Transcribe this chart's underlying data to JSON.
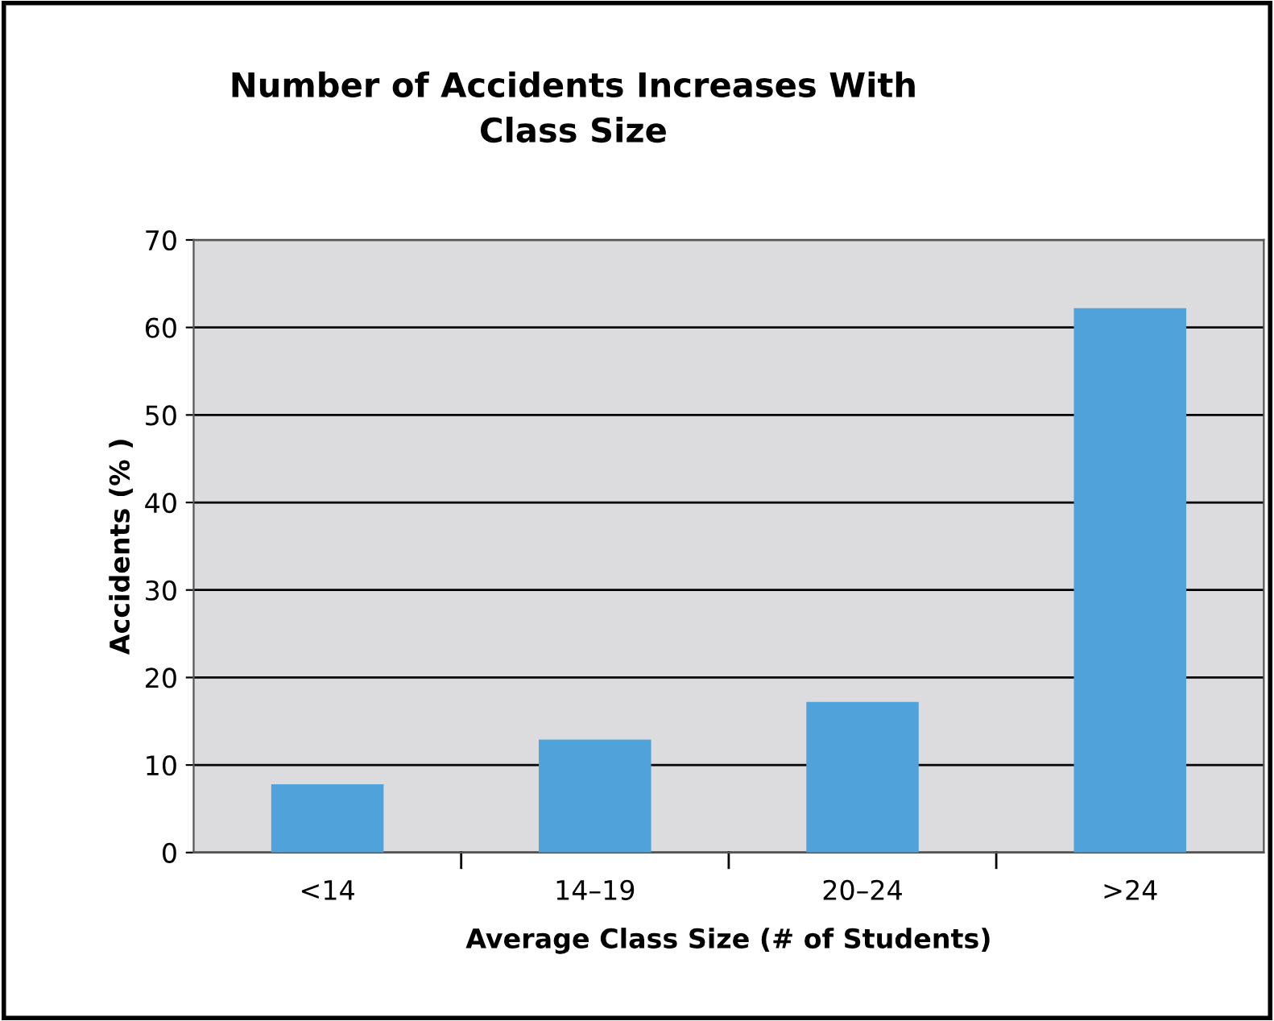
{
  "chart_data": {
    "type": "bar",
    "title": "Number of Accidents Increases With\nClass Size",
    "xlabel": "Average Class Size (# of Students)",
    "ylabel": "Accidents (% )",
    "categories": [
      "<14",
      "14–19",
      "20–24",
      ">24"
    ],
    "values": [
      7.8,
      12.9,
      17.2,
      62.2
    ],
    "color": "#4fa2da",
    "ylim": [
      0,
      70
    ],
    "yticks": [
      0,
      10,
      20,
      30,
      40,
      50,
      60,
      70
    ],
    "grid": "y"
  }
}
